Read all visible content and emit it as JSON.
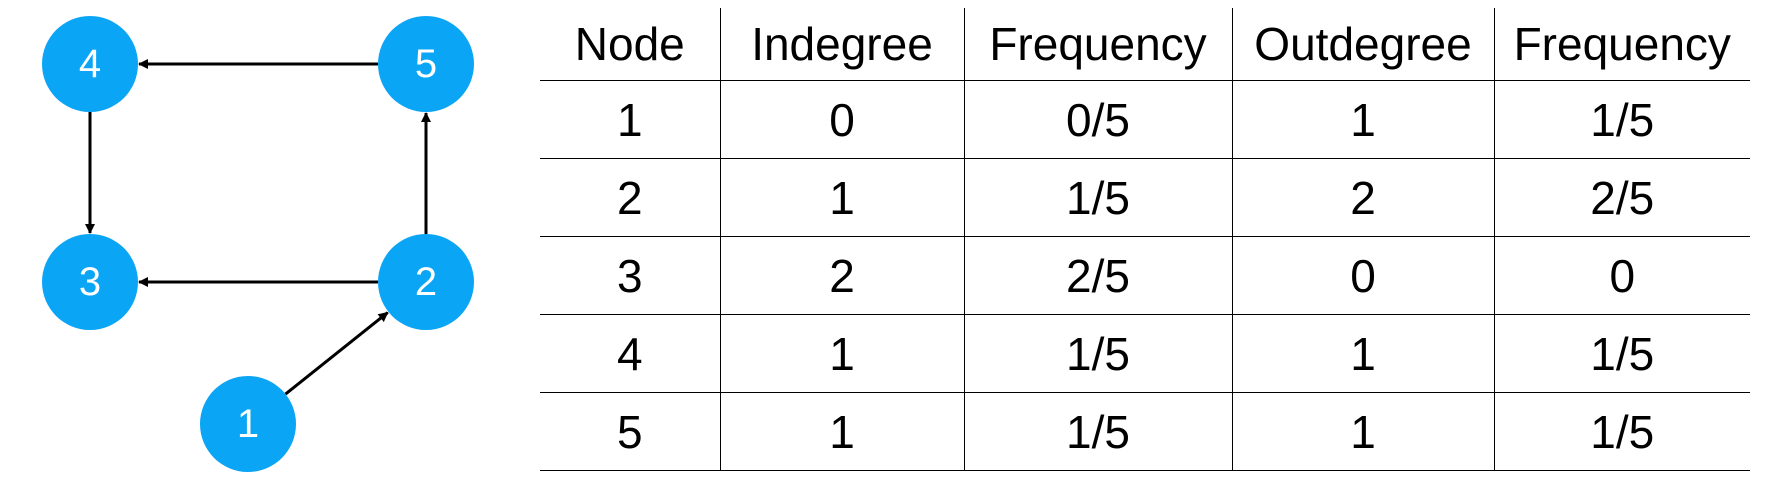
{
  "graph": {
    "accent_color": "#0BA5F5",
    "nodes": [
      {
        "id": "1",
        "label": "1"
      },
      {
        "id": "2",
        "label": "2"
      },
      {
        "id": "3",
        "label": "3"
      },
      {
        "id": "4",
        "label": "4"
      },
      {
        "id": "5",
        "label": "5"
      }
    ],
    "edges": [
      {
        "from": "1",
        "to": "2"
      },
      {
        "from": "2",
        "to": "3"
      },
      {
        "from": "2",
        "to": "5"
      },
      {
        "from": "5",
        "to": "4"
      },
      {
        "from": "4",
        "to": "3"
      }
    ]
  },
  "table": {
    "headers": [
      "Node",
      "Indegree",
      "Frequency",
      "Outdegree",
      "Frequency"
    ],
    "rows": [
      [
        "1",
        "0",
        "0/5",
        "1",
        "1/5"
      ],
      [
        "2",
        "1",
        "1/5",
        "2",
        "2/5"
      ],
      [
        "3",
        "2",
        "2/5",
        "0",
        "0"
      ],
      [
        "4",
        "1",
        "1/5",
        "1",
        "1/5"
      ],
      [
        "5",
        "1",
        "1/5",
        "1",
        "1/5"
      ]
    ]
  }
}
